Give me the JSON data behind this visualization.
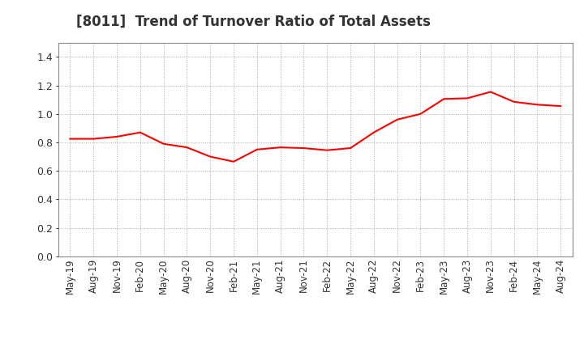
{
  "title": "[8011]  Trend of Turnover Ratio of Total Assets",
  "line_color": "#FF0000",
  "line_width": 1.5,
  "background_color": "#FFFFFF",
  "plot_bg_color": "#FFFFFF",
  "grid_color": "#AAAAAA",
  "ylim": [
    0.0,
    1.5
  ],
  "yticks": [
    0.0,
    0.2,
    0.4,
    0.6,
    0.8,
    1.0,
    1.2,
    1.4
  ],
  "x_labels": [
    "May-19",
    "Aug-19",
    "Nov-19",
    "Feb-20",
    "May-20",
    "Aug-20",
    "Nov-20",
    "Feb-21",
    "May-21",
    "Aug-21",
    "Nov-21",
    "Feb-22",
    "May-22",
    "Aug-22",
    "Nov-22",
    "Feb-23",
    "May-23",
    "Aug-23",
    "Nov-23",
    "Feb-24",
    "May-24",
    "Aug-24"
  ],
  "y_values": [
    0.825,
    0.825,
    0.84,
    0.87,
    0.79,
    0.765,
    0.7,
    0.665,
    0.75,
    0.765,
    0.76,
    0.745,
    0.76,
    0.87,
    0.96,
    1.0,
    1.105,
    1.11,
    1.155,
    1.085,
    1.065,
    1.055
  ],
  "title_fontsize": 12,
  "tick_fontsize": 8.5,
  "ytick_fontsize": 9
}
